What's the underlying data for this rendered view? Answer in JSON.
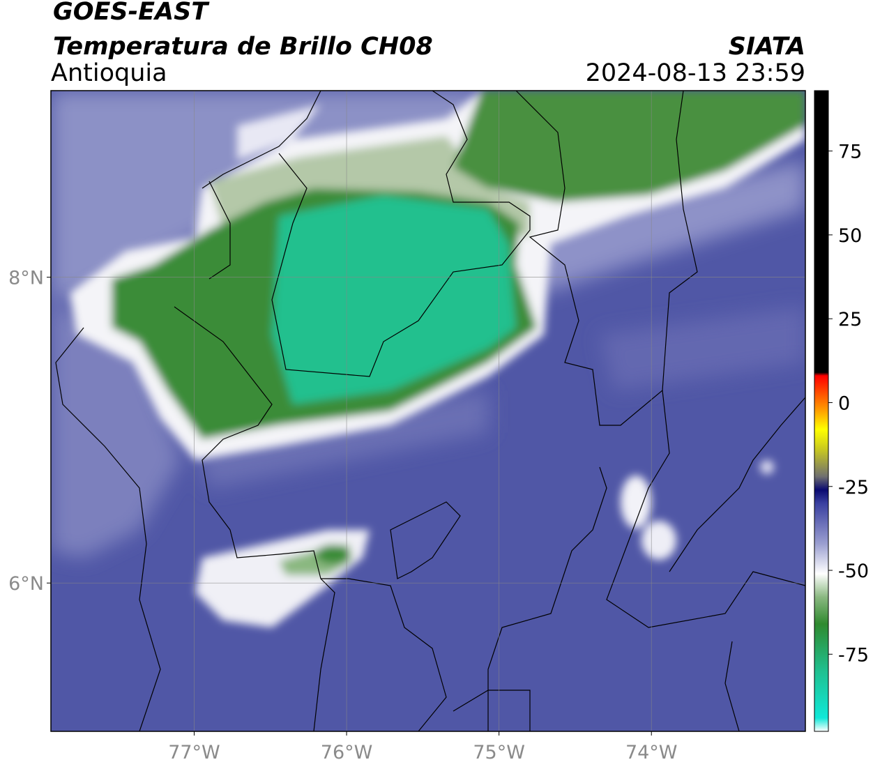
{
  "header": {
    "title": "GOES-EAST",
    "subtitle": "Temperatura de Brillo CH08",
    "region": "Antioquia",
    "source": "SIATA",
    "datetime": "2024-08-13 23:59"
  },
  "map": {
    "xlim": [
      -77.94,
      -72.99
    ],
    "ylim": [
      5.03,
      9.22
    ],
    "xticks": [
      {
        "value": -77,
        "label": "77°W"
      },
      {
        "value": -76,
        "label": "76°W"
      },
      {
        "value": -75,
        "label": "75°W"
      },
      {
        "value": -74,
        "label": "74°W"
      }
    ],
    "yticks": [
      {
        "value": 6,
        "label": "6°N"
      },
      {
        "value": 8,
        "label": "8°N"
      }
    ],
    "grid": true
  },
  "colorbar": {
    "lim": [
      -98,
      93
    ],
    "ticks": [
      -75,
      -50,
      -25,
      0,
      25,
      50,
      75
    ],
    "colormap": [
      {
        "value": -98,
        "color": "#ffffff"
      },
      {
        "value": -94,
        "color": "#10e8d8"
      },
      {
        "value": -80,
        "color": "#20c090"
      },
      {
        "value": -66,
        "color": "#2f8a2f"
      },
      {
        "value": -58,
        "color": "#8ab880"
      },
      {
        "value": -51,
        "color": "#ffffff"
      },
      {
        "value": -42,
        "color": "#9a9ed0"
      },
      {
        "value": -30,
        "color": "#3a40a0"
      },
      {
        "value": -26,
        "color": "#0a0a70"
      },
      {
        "value": -22,
        "color": "#707070"
      },
      {
        "value": -14,
        "color": "#c8c820"
      },
      {
        "value": -8,
        "color": "#ffff00"
      },
      {
        "value": -2,
        "color": "#ff9900"
      },
      {
        "value": 8,
        "color": "#ff0000"
      },
      {
        "value": 9,
        "color": "#000000"
      },
      {
        "value": 93,
        "color": "#000000"
      }
    ]
  }
}
